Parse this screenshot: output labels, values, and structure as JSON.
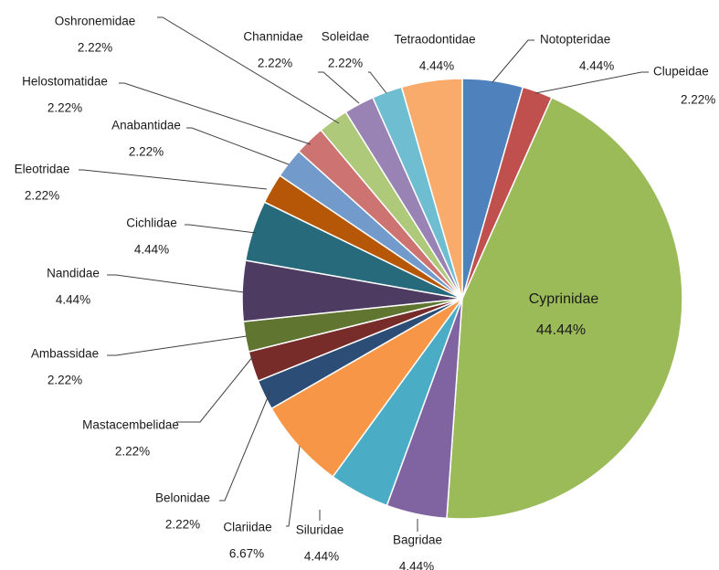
{
  "chart_data": {
    "type": "pie",
    "title": "",
    "legend": "none",
    "slices": [
      {
        "label": "Notopteridae",
        "value": 4.44,
        "value_label": "4.44%",
        "color": "#4F81BD"
      },
      {
        "label": "Clupeidae",
        "value": 2.22,
        "value_label": "2.22%",
        "color": "#C0504D"
      },
      {
        "label": "Cyprinidae",
        "value": 44.44,
        "value_label": "44.44%",
        "color": "#9BBB59"
      },
      {
        "label": "Bagridae",
        "value": 4.44,
        "value_label": "4.44%",
        "color": "#8064A2"
      },
      {
        "label": "Siluridae",
        "value": 4.44,
        "value_label": "4.44%",
        "color": "#4BACC6"
      },
      {
        "label": "Clariidae",
        "value": 6.67,
        "value_label": "6.67%",
        "color": "#F79646"
      },
      {
        "label": "Belonidae",
        "value": 2.22,
        "value_label": "2.22%",
        "color": "#2C4D75"
      },
      {
        "label": "Mastacembelidae",
        "value": 2.22,
        "value_label": "2.22%",
        "color": "#772C2A"
      },
      {
        "label": "Ambassidae",
        "value": 2.22,
        "value_label": "2.22%",
        "color": "#5F7530"
      },
      {
        "label": "Nandidae",
        "value": 4.44,
        "value_label": "4.44%",
        "color": "#4D3B62"
      },
      {
        "label": "Cichlidae",
        "value": 4.44,
        "value_label": "4.44%",
        "color": "#276A7C"
      },
      {
        "label": "Eleotridae",
        "value": 2.22,
        "value_label": "2.22%",
        "color": "#B65708"
      },
      {
        "label": "Anabantidae",
        "value": 2.22,
        "value_label": "2.22%",
        "color": "#729ACA"
      },
      {
        "label": "Helostomatidae",
        "value": 2.22,
        "value_label": "2.22%",
        "color": "#CD7371"
      },
      {
        "label": "Oshronemidae",
        "value": 2.22,
        "value_label": "2.22%",
        "color": "#AFC97A"
      },
      {
        "label": "Channidae",
        "value": 2.22,
        "value_label": "2.22%",
        "color": "#9983B5"
      },
      {
        "label": "Soleidae",
        "value": 2.22,
        "value_label": "2.22%",
        "color": "#6FBDD1"
      },
      {
        "label": "Tetraodontidae",
        "value": 4.44,
        "value_label": "4.44%",
        "color": "#F9AB6B"
      }
    ]
  }
}
